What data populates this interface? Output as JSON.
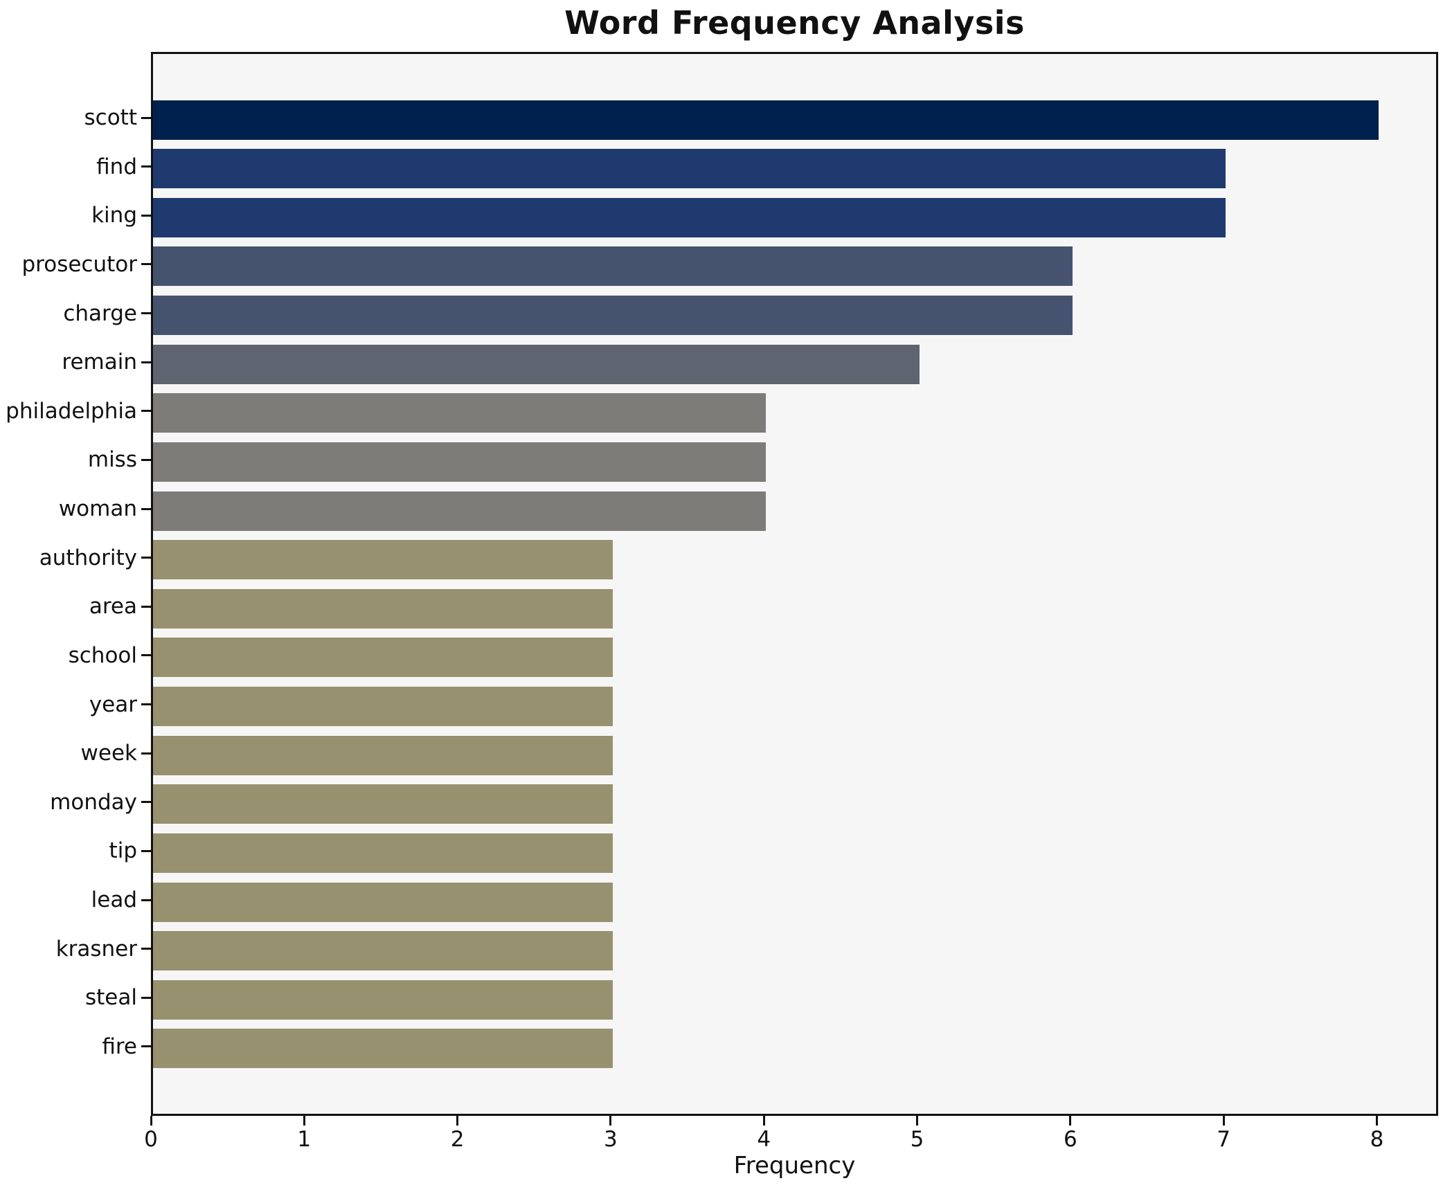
{
  "chart_data": {
    "type": "bar",
    "orientation": "horizontal",
    "title": "Word Frequency Analysis",
    "xlabel": "Frequency",
    "ylabel": "",
    "categories": [
      "scott",
      "find",
      "king",
      "prosecutor",
      "charge",
      "remain",
      "philadelphia",
      "miss",
      "woman",
      "authority",
      "area",
      "school",
      "year",
      "week",
      "monday",
      "tip",
      "lead",
      "krasner",
      "steal",
      "fire"
    ],
    "values": [
      8,
      7,
      7,
      6,
      6,
      5,
      4,
      4,
      4,
      3,
      3,
      3,
      3,
      3,
      3,
      3,
      3,
      3,
      3,
      3
    ],
    "bar_colors": [
      "#00214e",
      "#1f3a6e",
      "#1f3a6e",
      "#46536f",
      "#46536f",
      "#5f6570",
      "#7d7c78",
      "#7d7c78",
      "#7d7c78",
      "#989170",
      "#989170",
      "#989170",
      "#989170",
      "#989170",
      "#989170",
      "#989170",
      "#989170",
      "#989170",
      "#989170",
      "#989170"
    ],
    "xlim": [
      0,
      8.4
    ],
    "x_ticks": [
      0,
      1,
      2,
      3,
      4,
      5,
      6,
      7,
      8
    ],
    "grid": false,
    "legend": null,
    "plot_background": "#f7f6f6",
    "figure_background": "#ffffff",
    "spine_color": "#111111",
    "text_color": "#111111"
  }
}
